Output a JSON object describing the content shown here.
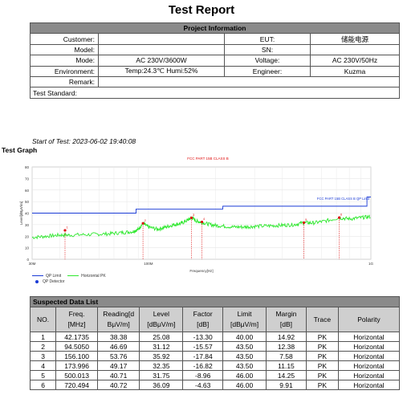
{
  "title": "Test Report",
  "project": {
    "header": "Project Information",
    "rows": [
      {
        "l1": "Customer:",
        "v1": "",
        "l2": "EUT:",
        "v2": "储能电源"
      },
      {
        "l1": "Model:",
        "v1": "",
        "l2": "SN:",
        "v2": ""
      },
      {
        "l1": "Mode:",
        "v1": "AC 230V/3600W",
        "l2": "Voltage:",
        "v2": "AC 230V/50Hz"
      },
      {
        "l1": "Environment:",
        "v1": "Temp:24.3℃  Humi:52%",
        "l2": "Engineer:",
        "v2": "Kuzma"
      }
    ],
    "remark_label": "Remark:",
    "standard_label": "Test Standard:"
  },
  "start_of_test": "Start of Test: 2023-06-02 19:40:08",
  "graph_title": "Test Graph",
  "chart_data": {
    "type": "line",
    "title": "FCC PART 15B CLASS B",
    "xlabel": "Frequency[Hz]",
    "ylabel": "Level[dBμV/m]",
    "x_scale": "log",
    "x_ticks": [
      "30M",
      "100M",
      "1G"
    ],
    "y_ticks": [
      0,
      10,
      20,
      30,
      40,
      50,
      60,
      70,
      80
    ],
    "ylim": [
      0,
      80
    ],
    "xlim_mhz": [
      30,
      1000
    ],
    "limit_label": "FCC PART 15B CLASS B QP Limit",
    "limit_segments": [
      {
        "x": [
          30,
          88
        ],
        "y": [
          40,
          40
        ]
      },
      {
        "x": [
          88,
          216
        ],
        "y": [
          43.5,
          43.5
        ]
      },
      {
        "x": [
          216,
          960
        ],
        "y": [
          46,
          46
        ]
      },
      {
        "x": [
          960,
          1000
        ],
        "y": [
          54,
          54
        ]
      }
    ],
    "horizontal_pk_trace": [
      [
        30,
        19
      ],
      [
        35,
        20
      ],
      [
        40,
        21
      ],
      [
        45,
        21
      ],
      [
        55,
        21.5
      ],
      [
        65,
        22
      ],
      [
        75,
        23
      ],
      [
        85,
        24
      ],
      [
        90,
        26
      ],
      [
        94.5,
        31
      ],
      [
        100,
        28
      ],
      [
        110,
        26
      ],
      [
        120,
        28
      ],
      [
        130,
        30
      ],
      [
        140,
        31
      ],
      [
        150,
        34
      ],
      [
        156.1,
        36
      ],
      [
        165,
        33
      ],
      [
        174,
        32
      ],
      [
        190,
        30
      ],
      [
        210,
        29
      ],
      [
        240,
        28
      ],
      [
        270,
        28
      ],
      [
        300,
        28.5
      ],
      [
        350,
        29
      ],
      [
        400,
        29.5
      ],
      [
        450,
        30
      ],
      [
        500,
        31.7
      ],
      [
        550,
        31.5
      ],
      [
        620,
        33
      ],
      [
        720,
        36
      ],
      [
        800,
        35
      ],
      [
        900,
        36
      ],
      [
        1000,
        37
      ]
    ],
    "qp_detector_points": [
      [
        42.1735,
        25.08
      ],
      [
        94.505,
        31.12
      ],
      [
        156.1,
        35.92
      ],
      [
        173.996,
        32.35
      ],
      [
        500.013,
        31.75
      ],
      [
        720.494,
        36.09
      ]
    ],
    "marker_labels": [
      "1",
      "2",
      "3",
      "4",
      "5",
      "6"
    ],
    "legend": [
      "QP Limit",
      "Horizontal PK",
      "QP Detector"
    ],
    "colors": {
      "limit": "#1a3bd6",
      "trace": "#2ee82e",
      "marker": "#e01010",
      "title": "#e01010"
    }
  },
  "suspected": {
    "header": "Suspected Data List",
    "columns": [
      "NO.",
      "Freq.\n[MHz]",
      "Reading[d\nBμV/m]",
      "Level\n[dBμV/m]",
      "Factor\n[dB]",
      "Limit\n[dBμV/m]",
      "Margin\n[dB]",
      "Trace",
      "Polarity"
    ],
    "rows": [
      [
        "1",
        "42.1735",
        "38.38",
        "25.08",
        "-13.30",
        "40.00",
        "14.92",
        "PK",
        "Horizontal"
      ],
      [
        "2",
        "94.5050",
        "46.69",
        "31.12",
        "-15.57",
        "43.50",
        "12.38",
        "PK",
        "Horizontal"
      ],
      [
        "3",
        "156.100",
        "53.76",
        "35.92",
        "-17.84",
        "43.50",
        "7.58",
        "PK",
        "Horizontal"
      ],
      [
        "4",
        "173.996",
        "49.17",
        "32.35",
        "-16.82",
        "43.50",
        "11.15",
        "PK",
        "Horizontal"
      ],
      [
        "5",
        "500.013",
        "40.71",
        "31.75",
        "-8.96",
        "46.00",
        "14.25",
        "PK",
        "Horizontal"
      ],
      [
        "6",
        "720.494",
        "40.72",
        "36.09",
        "-4.63",
        "46.00",
        "9.91",
        "PK",
        "Horizontal"
      ]
    ]
  }
}
